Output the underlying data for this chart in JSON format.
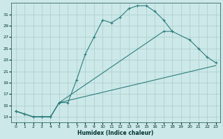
{
  "title": "",
  "xlabel": "Humidex (Indice chaleur)",
  "bg_color": "#cce8e8",
  "grid_color": "#aacccc",
  "line_color": "#2d7d7d",
  "xlim": [
    -0.5,
    23.5
  ],
  "ylim": [
    12,
    33
  ],
  "xticks": [
    0,
    1,
    2,
    3,
    4,
    5,
    6,
    7,
    8,
    9,
    10,
    11,
    12,
    13,
    14,
    15,
    16,
    17,
    18,
    19,
    20,
    21,
    22,
    23
  ],
  "yticks": [
    13,
    15,
    17,
    19,
    21,
    23,
    25,
    27,
    29,
    31
  ],
  "line1_x": [
    0,
    1,
    2,
    3,
    4,
    5,
    6,
    7,
    8,
    9,
    10,
    11,
    12,
    13,
    14,
    15,
    16,
    17,
    18
  ],
  "line1_y": [
    14.0,
    13.5,
    13.0,
    13.0,
    13.0,
    15.5,
    15.5,
    19.5,
    24.0,
    27.0,
    30.0,
    29.5,
    30.5,
    32.0,
    32.5,
    32.5,
    31.5,
    30.0,
    28.0
  ],
  "line2_x": [
    0,
    1,
    2,
    3,
    4,
    5,
    17,
    18,
    20,
    21,
    22,
    23
  ],
  "line2_y": [
    14.0,
    13.5,
    13.0,
    13.0,
    13.0,
    15.5,
    28.0,
    28.0,
    26.5,
    25.0,
    23.5,
    22.5
  ],
  "line3_x": [
    0,
    1,
    2,
    3,
    4,
    5,
    23
  ],
  "line3_y": [
    14.0,
    13.5,
    13.0,
    13.0,
    13.0,
    15.5,
    22.0
  ]
}
